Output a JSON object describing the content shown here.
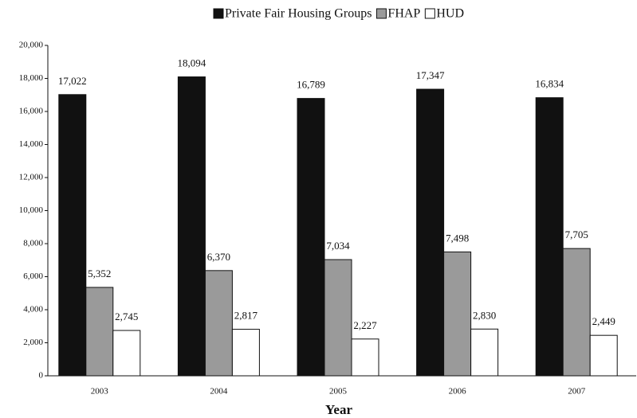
{
  "chart_data": {
    "type": "bar",
    "x_label": "Year",
    "categories": [
      "2003",
      "2004",
      "2005",
      "2006",
      "2007"
    ],
    "series": [
      {
        "name": "Private Fair Housing Groups",
        "color": "#111111",
        "values": [
          17022,
          18094,
          16789,
          17347,
          16834
        ],
        "value_labels": [
          "17,022",
          "18,094",
          "16,789",
          "17,347",
          "16,834"
        ]
      },
      {
        "name": "FHAP",
        "color": "#9a9a9a",
        "values": [
          5352,
          6370,
          7034,
          7498,
          7705
        ],
        "value_labels": [
          "5,352",
          "6,370",
          "7,034",
          "7,498",
          "7,705"
        ]
      },
      {
        "name": "HUD",
        "color": "#ffffff",
        "values": [
          2745,
          2817,
          2227,
          2830,
          2449
        ],
        "value_labels": [
          "2,745",
          "2,817",
          "2,227",
          "2,830",
          "2,449"
        ]
      }
    ],
    "ylim": [
      0,
      20000
    ],
    "yticks": [
      0,
      {
        "value": 2000,
        "label": "2,000"
      },
      {
        "value": 4000,
        "label": "4,000"
      },
      {
        "value": 6000,
        "label": "6,000"
      },
      {
        "value": 8000,
        "label": "8,000"
      },
      {
        "value": 10000,
        "label": "10,000"
      },
      {
        "value": 12000,
        "label": "12,000"
      },
      {
        "value": 14000,
        "label": "14,000"
      },
      {
        "value": 16000,
        "label": "16,000"
      },
      {
        "value": 18000,
        "label": "18,000"
      },
      {
        "value": 20000,
        "label": "20,000"
      }
    ],
    "legend": "top"
  }
}
